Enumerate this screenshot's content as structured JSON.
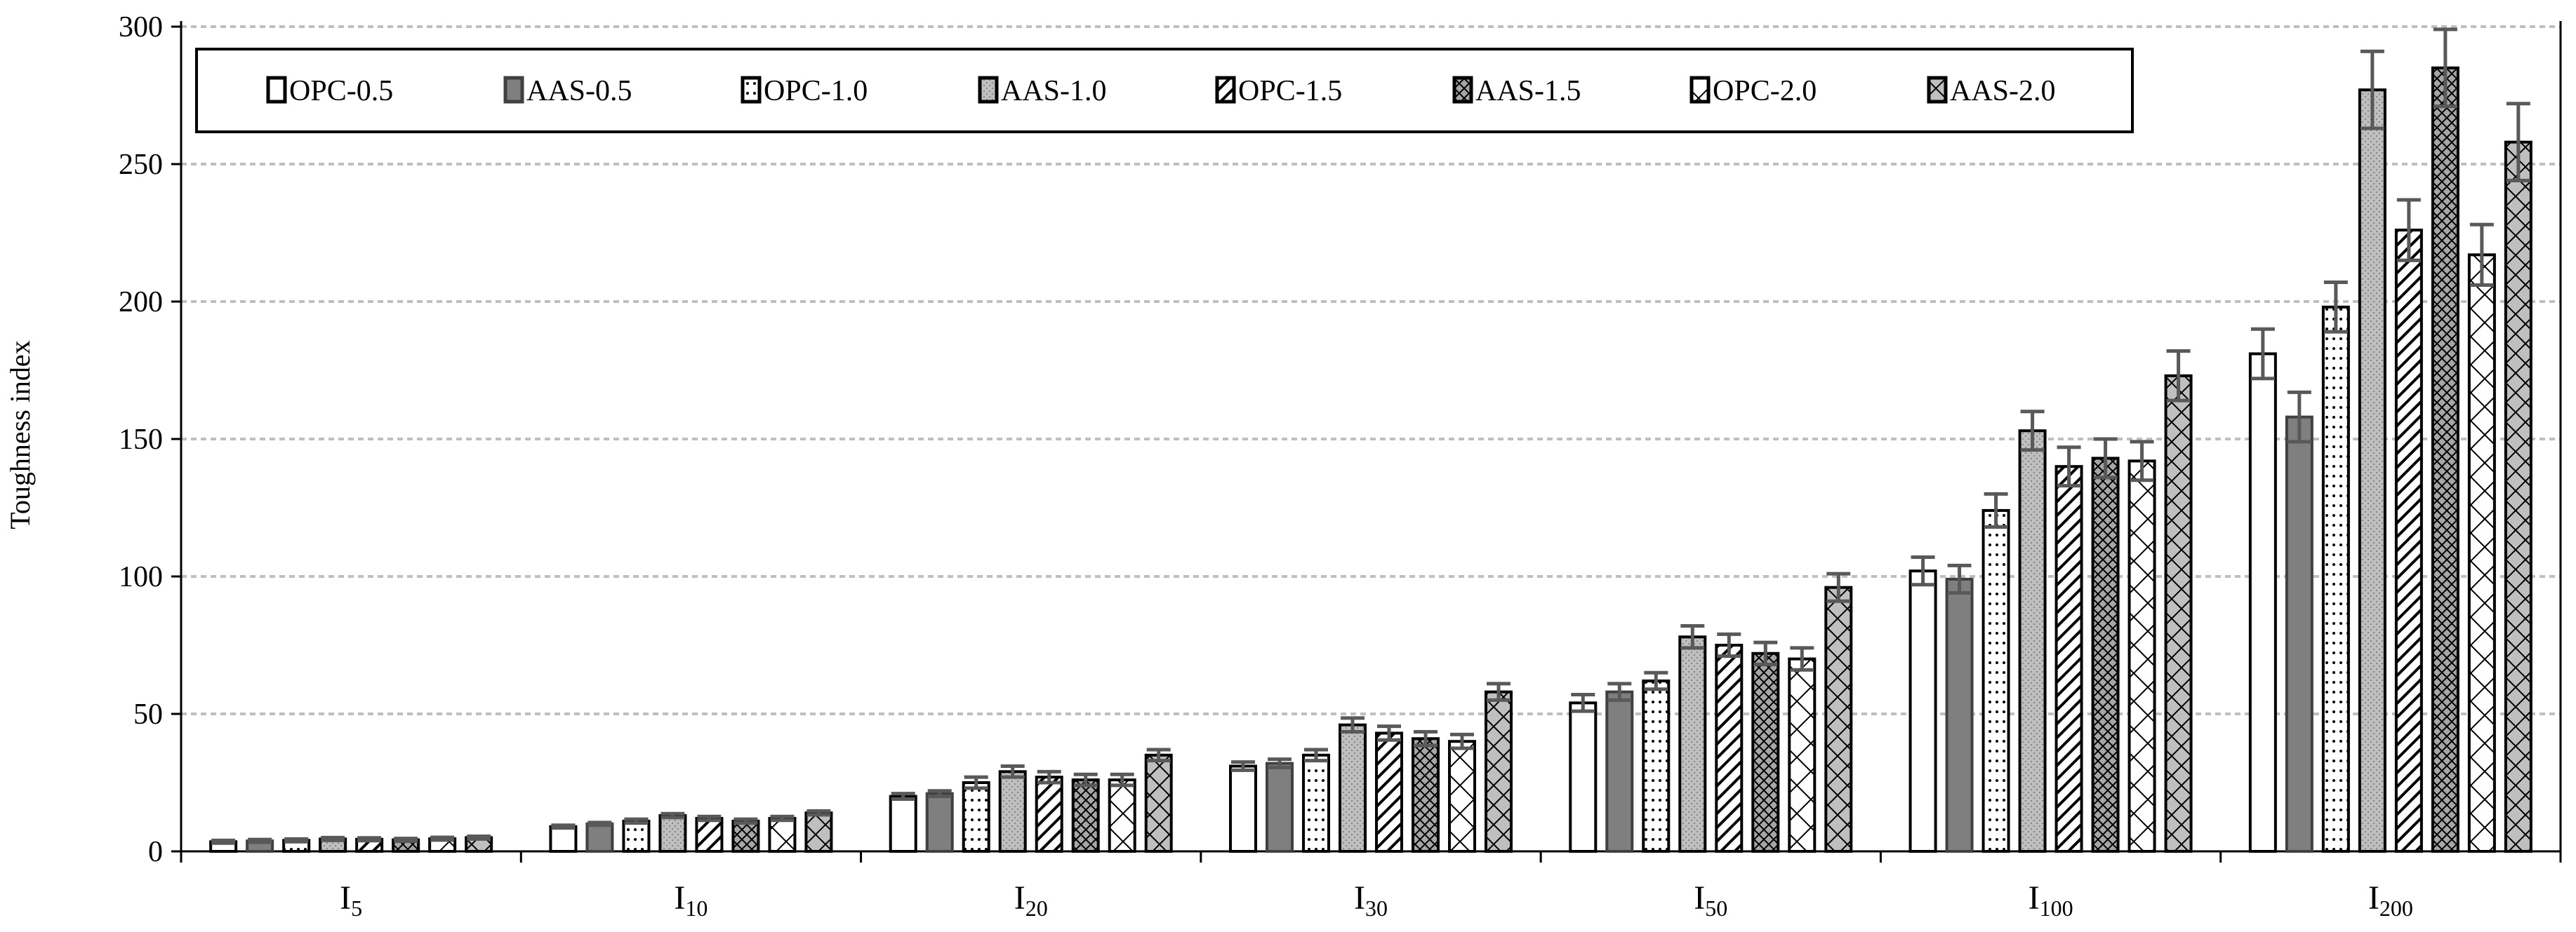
{
  "chart_data": {
    "type": "bar",
    "title": "",
    "xlabel": "",
    "ylabel": "Toughness index",
    "ylim": [
      0,
      300
    ],
    "yticks": [
      0,
      50,
      100,
      150,
      200,
      250,
      300
    ],
    "grid": "horizontal dashed",
    "legend_position": "top-left, inside plot, single row",
    "categories": [
      {
        "base": "I",
        "sub": "5"
      },
      {
        "base": "I",
        "sub": "10"
      },
      {
        "base": "I",
        "sub": "20"
      },
      {
        "base": "I",
        "sub": "30"
      },
      {
        "base": "I",
        "sub": "50"
      },
      {
        "base": "I",
        "sub": "100"
      },
      {
        "base": "I",
        "sub": "200"
      }
    ],
    "series": [
      {
        "name": "OPC-0.5",
        "pattern": "white",
        "values": [
          3.5,
          9,
          20,
          31,
          54,
          102,
          181
        ],
        "errors": [
          0.5,
          0.5,
          1,
          1.5,
          3,
          5,
          9
        ]
      },
      {
        "name": "AAS-0.5",
        "pattern": "dark-gray",
        "values": [
          3.8,
          10,
          21,
          32,
          58,
          99,
          158
        ],
        "errors": [
          0.5,
          0.5,
          1,
          1.5,
          3,
          5,
          9
        ]
      },
      {
        "name": "OPC-1.0",
        "pattern": "dotted-white",
        "values": [
          4,
          11,
          25,
          35,
          62,
          124,
          198
        ],
        "errors": [
          0.5,
          0.7,
          2,
          2,
          3,
          6,
          9
        ]
      },
      {
        "name": "AAS-1.0",
        "pattern": "light-gray-dots",
        "values": [
          4.5,
          13,
          29,
          46,
          78,
          153,
          277
        ],
        "errors": [
          0.5,
          0.7,
          2,
          2.5,
          4,
          7,
          14
        ]
      },
      {
        "name": "OPC-1.5",
        "pattern": "diagonal-lines",
        "values": [
          4.4,
          12,
          27,
          43,
          75,
          140,
          226
        ],
        "errors": [
          0.5,
          0.7,
          2,
          2.5,
          4,
          7,
          11
        ]
      },
      {
        "name": "AAS-1.5",
        "pattern": "gray-diagonal-crosshatch",
        "values": [
          4.2,
          11,
          26,
          41,
          72,
          143,
          285
        ],
        "errors": [
          0.5,
          0.7,
          2,
          2.5,
          4,
          7,
          14
        ]
      },
      {
        "name": "OPC-2.0",
        "pattern": "white-crosshatch",
        "values": [
          4.6,
          12,
          26,
          40,
          70,
          142,
          217
        ],
        "errors": [
          0.5,
          0.7,
          2,
          2.5,
          4,
          7,
          11
        ]
      },
      {
        "name": "AAS-2.0",
        "pattern": "gray-crosshatch",
        "values": [
          5,
          14,
          35,
          58,
          96,
          173,
          258
        ],
        "errors": [
          0.5,
          0.7,
          2,
          3,
          5,
          9,
          14
        ]
      }
    ],
    "colors": {
      "dark_gray": "#7f7f7f",
      "light_gray": "#bfbfbf",
      "gray": "#a6a6a6",
      "error_bar": "#595959",
      "grid": "#bfbfbf"
    }
  }
}
